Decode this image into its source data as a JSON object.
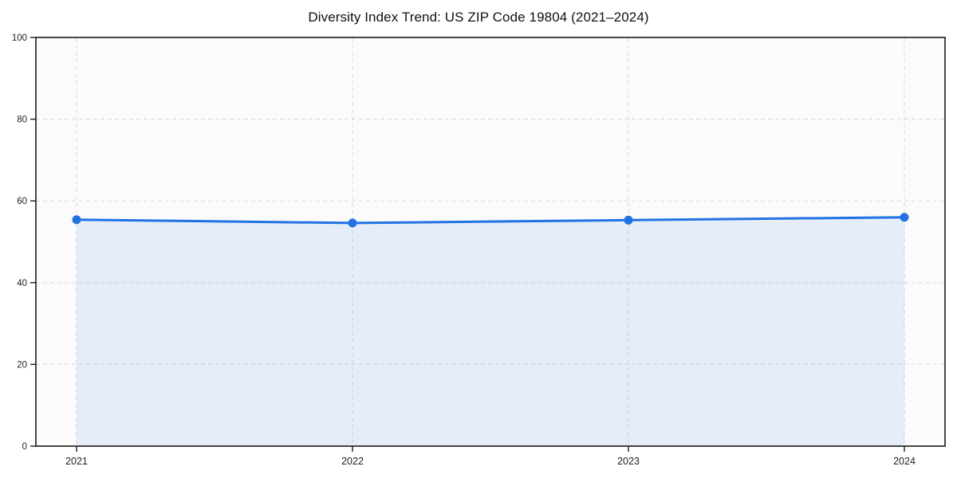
{
  "figure": {
    "background": "#ffffff",
    "plot_background": "#fbfbfb"
  },
  "chart_data": {
    "type": "area",
    "title": "Diversity Index Trend: US ZIP Code 19804 (2021–2024)",
    "categories": [
      "2021",
      "2022",
      "2023",
      "2024"
    ],
    "series": [
      {
        "name": "Diversity Index",
        "values": [
          55.4,
          54.6,
          55.3,
          56.0
        ]
      }
    ],
    "xlabel": "",
    "ylabel": "",
    "ylim": [
      0,
      100
    ],
    "yticks": [
      0,
      20,
      40,
      60,
      80,
      100
    ],
    "grid": true,
    "grid_style": "dashed",
    "legend": "none",
    "colors": {
      "line": "#2272e3",
      "marker": "#2272e3",
      "fill": "rgba(34,114,227,0.10)",
      "grid": "#dedede",
      "axis": "#1a1a1a",
      "tick_label": "#222222",
      "title": "#111111"
    }
  }
}
